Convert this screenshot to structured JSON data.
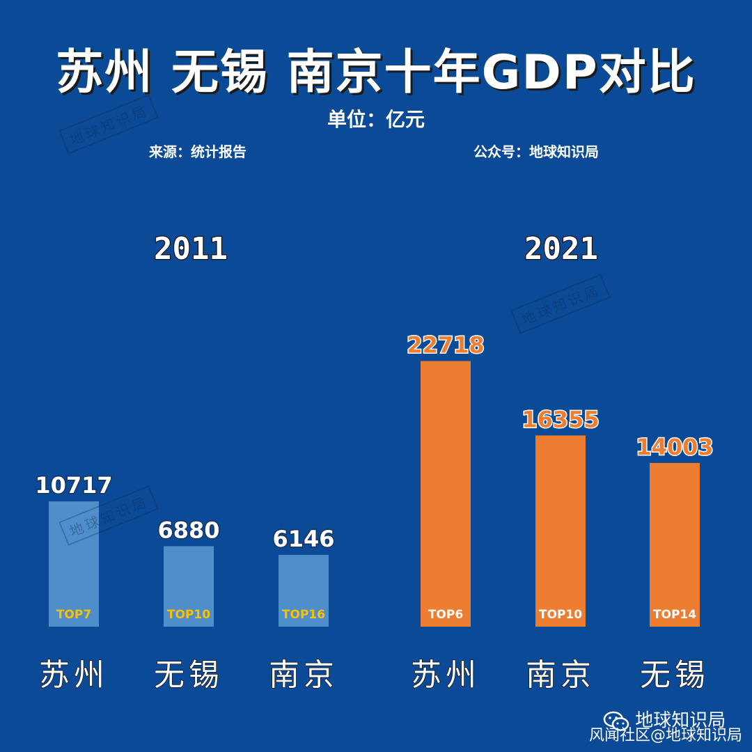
{
  "title": "苏州 无锡 南京十年GDP对比",
  "unit": "单位：亿元",
  "source": "来源：统计报告",
  "account": "公众号：地球知识局",
  "stamp_text": "地球知识局",
  "footer": {
    "brand": "地球知识局",
    "credit": "风闻社区@地球知识局",
    "icon": "wechat-icon"
  },
  "colors": {
    "background": "#0b4a96",
    "bar_2011": "#5b9bd5",
    "bar_2021": "#ed7d31",
    "rank_2011": "#ffc000",
    "rank_2021": "#ffffff"
  },
  "chart_data": [
    {
      "type": "bar",
      "title": "2011",
      "categories": [
        "苏州",
        "无锡",
        "南京"
      ],
      "values": [
        10717,
        6880,
        6146
      ],
      "labels": [
        "10717",
        "6880",
        "6146"
      ],
      "ranks": [
        "TOP7",
        "TOP10",
        "TOP16"
      ],
      "ylim": [
        0,
        24000
      ],
      "grid": false
    },
    {
      "type": "bar",
      "title": "2021",
      "categories": [
        "苏州",
        "南京",
        "无锡"
      ],
      "values": [
        22718,
        16355,
        14003
      ],
      "labels": [
        "22718",
        "16355",
        "14003"
      ],
      "ranks": [
        "TOP6",
        "TOP10",
        "TOP14"
      ],
      "ylim": [
        0,
        24000
      ],
      "grid": false
    }
  ]
}
